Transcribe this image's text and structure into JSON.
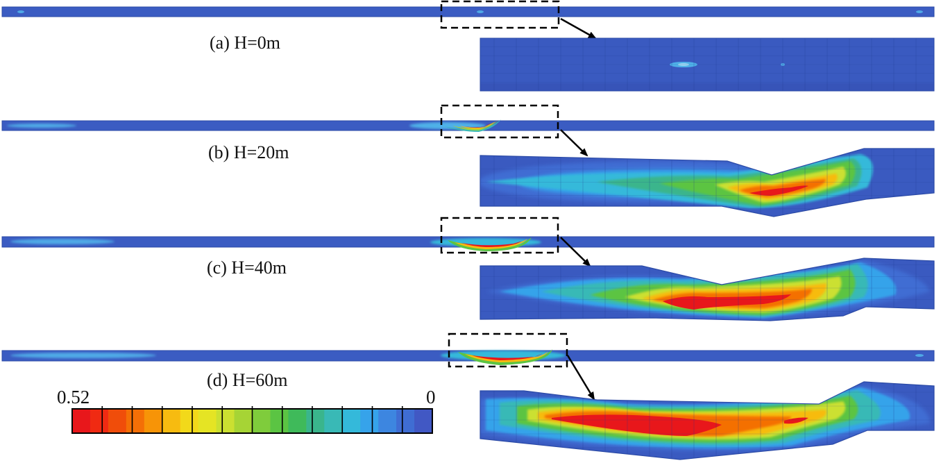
{
  "panels": [
    {
      "label": "(a) H=0m"
    },
    {
      "label": "(b) H=20m"
    },
    {
      "label": "(c) H=40m"
    },
    {
      "label": "(d) H=60m"
    }
  ],
  "legend": {
    "max_label": "0.52",
    "min_label": "0",
    "colors": [
      "#e8171b",
      "#f02a12",
      "#f04d0a",
      "#f46f06",
      "#f79407",
      "#f7bb10",
      "#f2d91a",
      "#e5e424",
      "#cbe031",
      "#a6d435",
      "#7fcc3c",
      "#5bc443",
      "#3fba5a",
      "#3ab58c",
      "#39b9b6",
      "#34b9da",
      "#36a3ea",
      "#3d86e0",
      "#3f6dd3",
      "#4158c4"
    ]
  },
  "colors": {
    "beam": "#3b5cc2",
    "beam_edge": "#2b4aa6",
    "grid": "#1e3a8f"
  }
}
